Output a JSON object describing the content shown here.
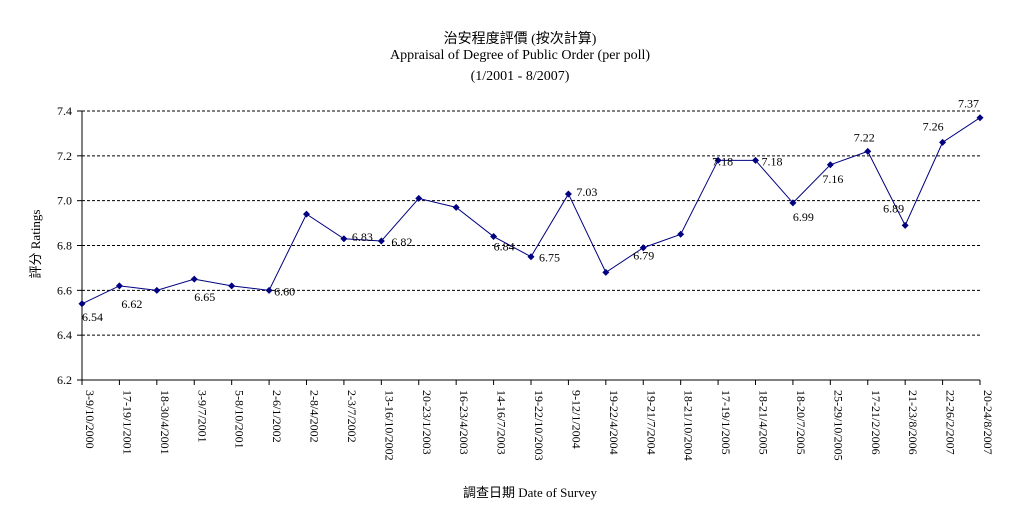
{
  "chart_data": {
    "type": "line",
    "title": "治安程度評價 (按次計算)",
    "subtitle": "Appraisal of Degree of Public Order (per poll)",
    "period": "(1/2001 - 8/2007)",
    "xlabel": "調查日期 Date of Survey",
    "ylabel": "評分 Ratings",
    "ylim": [
      6.2,
      7.4
    ],
    "yticks": [
      "6.2",
      "6.4",
      "6.6",
      "6.8",
      "7.0",
      "7.2",
      "7.4"
    ],
    "grid": true,
    "categories": [
      "3-9/10/2000",
      "17-19/1/2001",
      "18-30/4/2001",
      "3-9/7/2001",
      "5-8/10/2001",
      "2-6/1/2002",
      "2-8/4/2002",
      "2-3/7/2002",
      "13-16/10/2002",
      "20-23/1/2003",
      "16-23/4/2003",
      "14-16/7/2003",
      "19-22/10/2003",
      "9-12/1/2004",
      "19-22/4/2004",
      "19-21/7/2004",
      "18-21/10/2004",
      "17-19/1/2005",
      "18-21/4/2005",
      "18-20/7/2005",
      "25-29/10/2005",
      "17-21/2/2006",
      "21-23/8/2006",
      "22-26/2/2007",
      "20-24/8/2007"
    ],
    "series": [
      {
        "color": "#000080",
        "values": [
          6.54,
          6.62,
          6.6,
          6.65,
          6.62,
          6.6,
          6.94,
          6.83,
          6.82,
          7.01,
          6.97,
          6.84,
          6.75,
          7.03,
          6.68,
          6.79,
          6.85,
          7.18,
          7.18,
          6.99,
          7.16,
          7.22,
          6.89,
          7.26,
          7.37
        ],
        "labels": [
          "6.54",
          "6.62",
          "",
          "6.65",
          "",
          "6.60",
          "",
          "6.83",
          "6.82",
          "",
          "",
          "6.84",
          "6.75",
          "7.03",
          "",
          "6.79",
          "",
          "7.18",
          "7.18",
          "6.99",
          "7.16",
          "7.22",
          "6.89",
          "7.26",
          "7.37"
        ]
      }
    ]
  }
}
